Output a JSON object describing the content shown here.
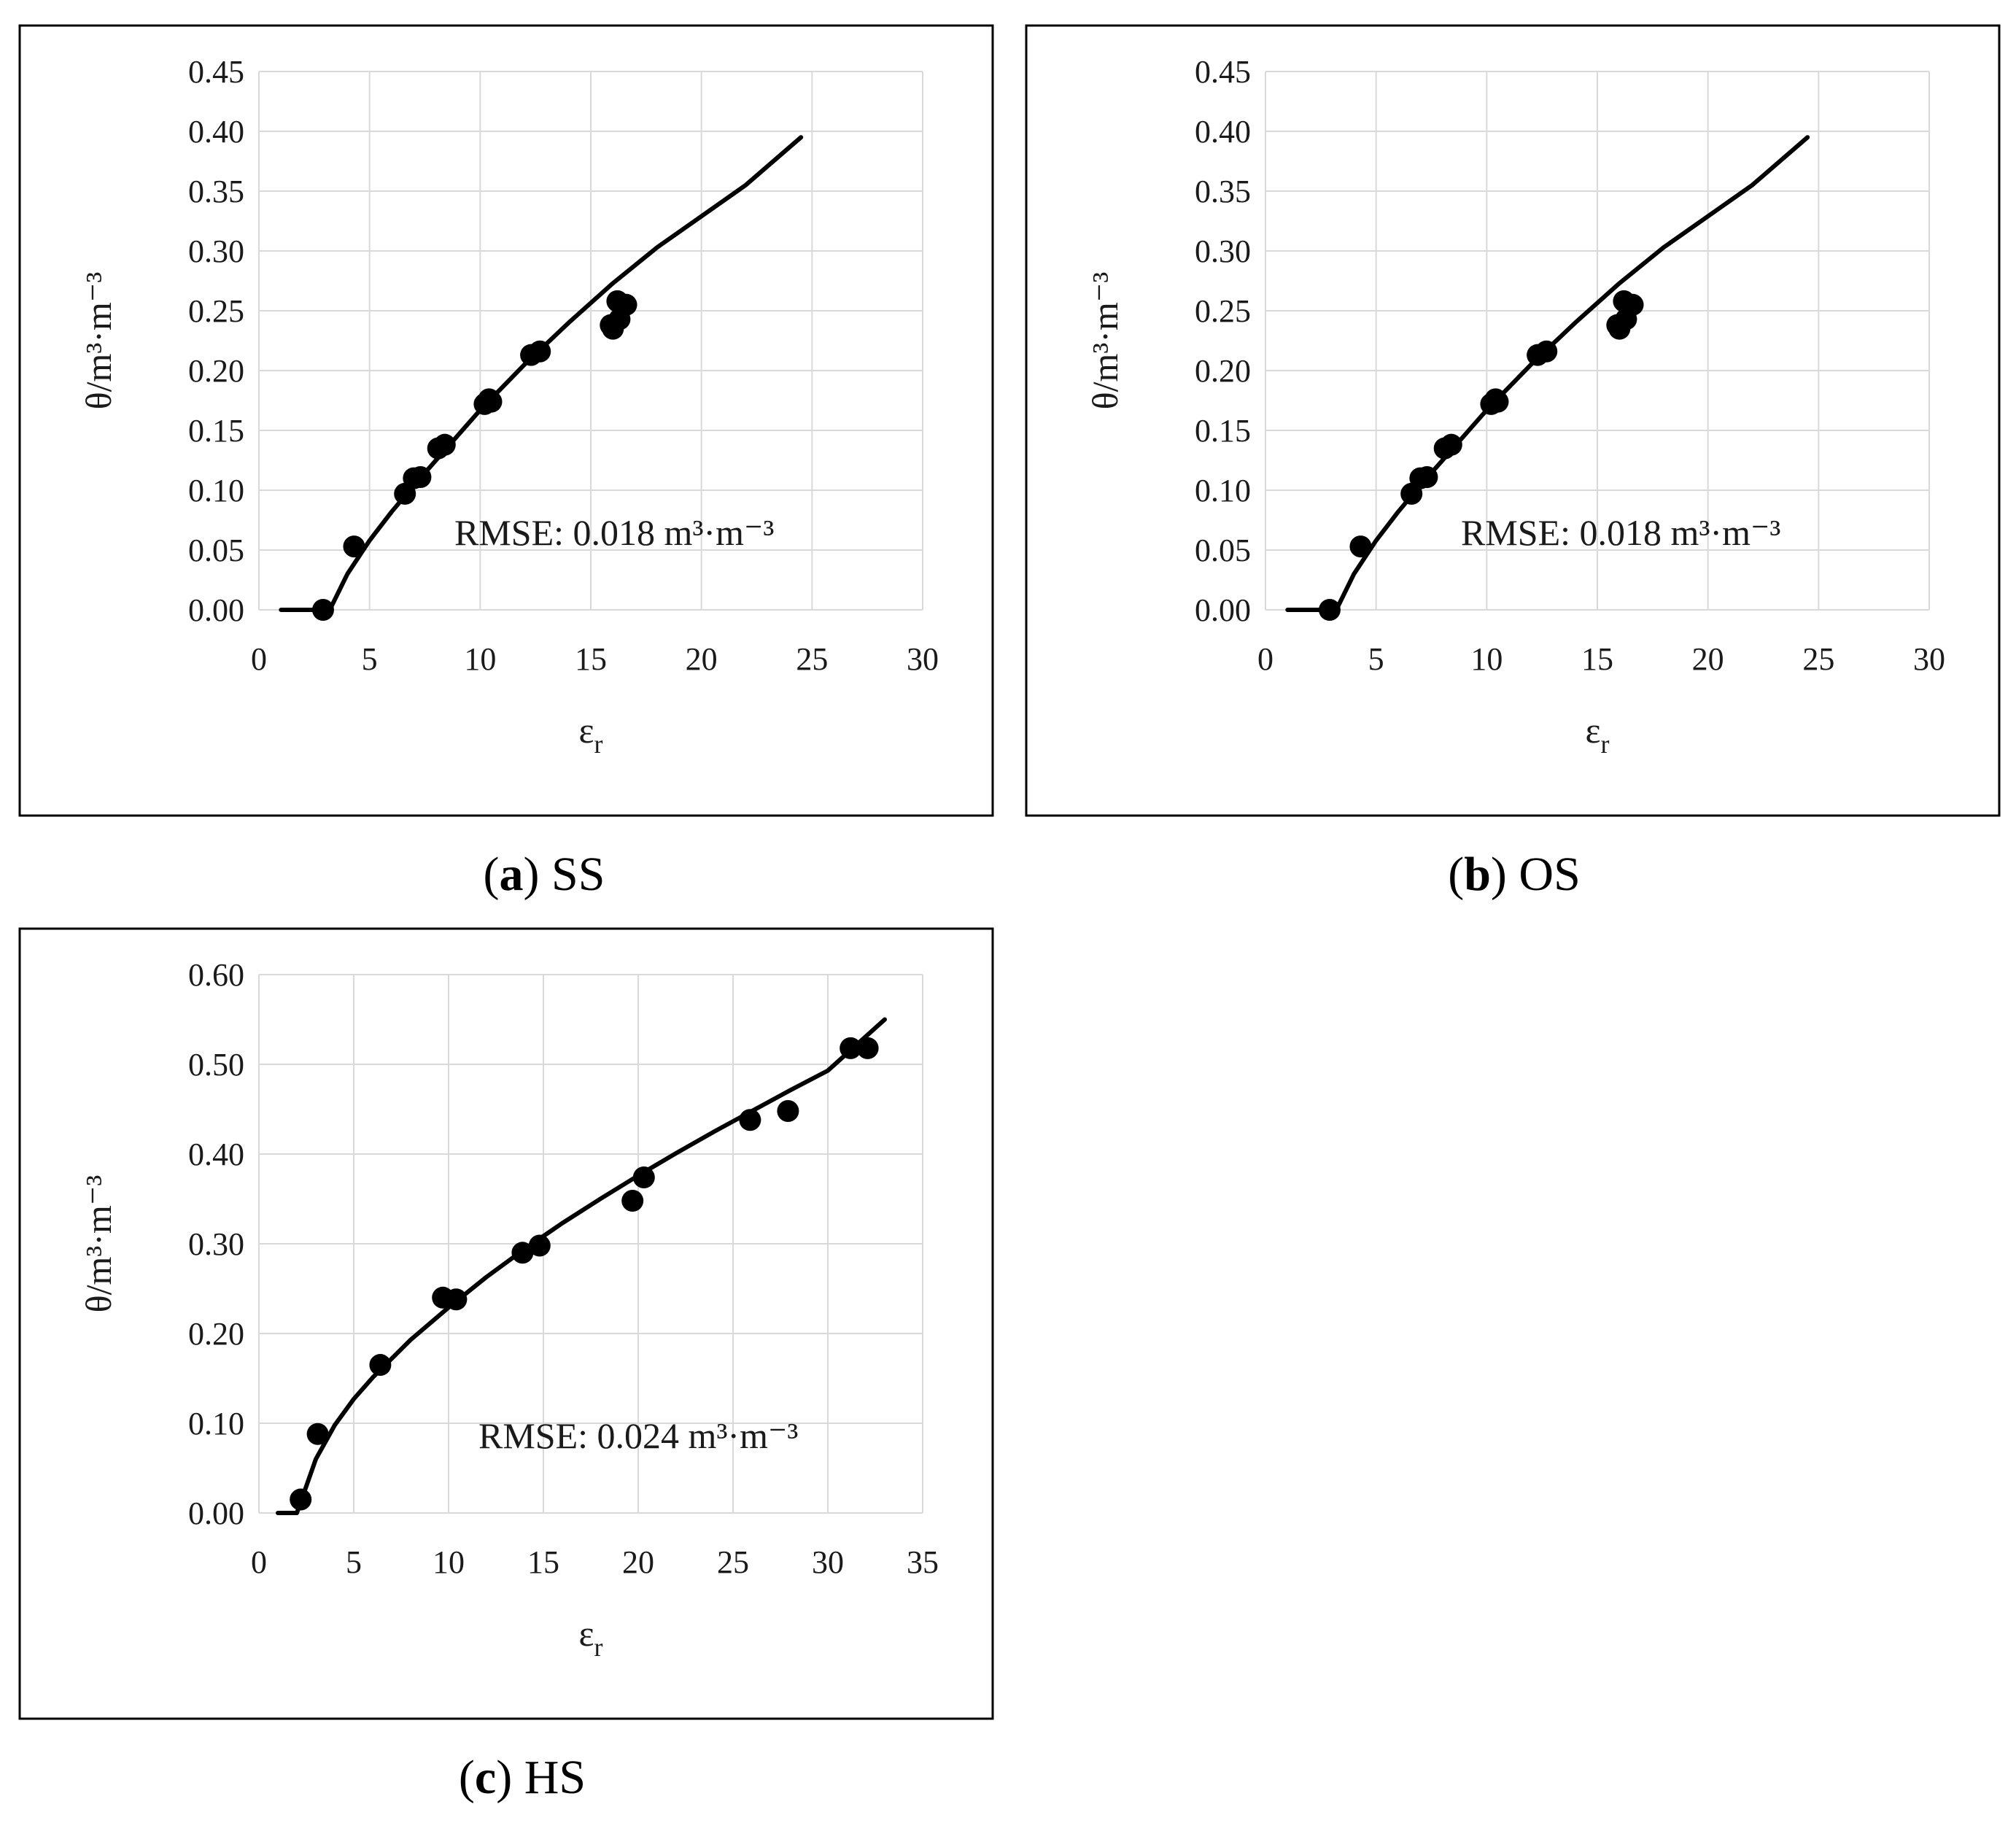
{
  "chart_data": [
    {
      "type": "scatter",
      "panel_letter": "a",
      "panel_name": "SS",
      "xlabel": "ε",
      "xlabel_sub": "r",
      "ylabel": "θ/m³·m⁻³",
      "xlim": [
        0,
        30
      ],
      "ylim": [
        0,
        0.45
      ],
      "xticks": [
        "0",
        "5",
        "10",
        "15",
        "20",
        "25",
        "30"
      ],
      "yticks": [
        "0.00",
        "0.05",
        "0.10",
        "0.15",
        "0.20",
        "0.25",
        "0.30",
        "0.35",
        "0.40",
        "0.45"
      ],
      "grid": true,
      "rmse_label": "RMSE:  0.018 m³·m⁻³",
      "series": [
        {
          "kind": "points",
          "x": [
            2.9,
            4.3,
            6.6,
            7.0,
            7.3,
            8.1,
            8.4,
            10.2,
            10.4,
            10.5,
            12.3,
            12.7,
            15.9,
            16.0,
            16.2,
            16.3,
            16.6
          ],
          "y": [
            0.0,
            0.053,
            0.097,
            0.11,
            0.111,
            0.135,
            0.138,
            0.172,
            0.176,
            0.174,
            0.213,
            0.216,
            0.238,
            0.235,
            0.258,
            0.243,
            0.255
          ]
        },
        {
          "kind": "line",
          "x": [
            1.0,
            3.2,
            4.0,
            5.0,
            6.0,
            7.0,
            8.0,
            10.0,
            12.0,
            14.0,
            16.0,
            18.0,
            20.0,
            22.0,
            24.5
          ],
          "y": [
            0.0,
            0.0,
            0.03,
            0.058,
            0.082,
            0.104,
            0.125,
            0.167,
            0.205,
            0.24,
            0.273,
            0.303,
            0.329,
            0.355,
            0.395
          ]
        }
      ]
    },
    {
      "type": "scatter",
      "panel_letter": "b",
      "panel_name": "OS",
      "xlabel": "ε",
      "xlabel_sub": "r",
      "ylabel": "θ/m³·m⁻³",
      "xlim": [
        0,
        30
      ],
      "ylim": [
        0,
        0.45
      ],
      "xticks": [
        "0",
        "5",
        "10",
        "15",
        "20",
        "25",
        "30"
      ],
      "yticks": [
        "0.00",
        "0.05",
        "0.10",
        "0.15",
        "0.20",
        "0.25",
        "0.30",
        "0.35",
        "0.40",
        "0.45"
      ],
      "grid": true,
      "rmse_label": "RMSE:  0.018 m³·m⁻³",
      "series": [
        {
          "kind": "points",
          "x": [
            2.9,
            4.3,
            6.6,
            7.0,
            7.3,
            8.1,
            8.4,
            10.2,
            10.4,
            10.5,
            12.3,
            12.7,
            15.9,
            16.0,
            16.2,
            16.3,
            16.6
          ],
          "y": [
            0.0,
            0.053,
            0.097,
            0.11,
            0.111,
            0.135,
            0.138,
            0.172,
            0.176,
            0.174,
            0.213,
            0.216,
            0.238,
            0.235,
            0.258,
            0.243,
            0.255
          ]
        },
        {
          "kind": "line",
          "x": [
            1.0,
            3.2,
            4.0,
            5.0,
            6.0,
            7.0,
            8.0,
            10.0,
            12.0,
            14.0,
            16.0,
            18.0,
            20.0,
            22.0,
            24.5
          ],
          "y": [
            0.0,
            0.0,
            0.03,
            0.058,
            0.082,
            0.104,
            0.125,
            0.167,
            0.205,
            0.24,
            0.273,
            0.303,
            0.329,
            0.355,
            0.395
          ]
        }
      ]
    },
    {
      "type": "scatter",
      "panel_letter": "c",
      "panel_name": "HS",
      "xlabel": "ε",
      "xlabel_sub": "r",
      "ylabel": "θ/m³·m⁻³",
      "xlim": [
        0,
        35
      ],
      "ylim": [
        0,
        0.6
      ],
      "xticks": [
        "0",
        "5",
        "10",
        "15",
        "20",
        "25",
        "30",
        "35"
      ],
      "yticks": [
        "0.00",
        "0.10",
        "0.20",
        "0.30",
        "0.40",
        "0.50",
        "0.60"
      ],
      "grid": true,
      "rmse_label": "RMSE:  0.024 m³·m⁻³",
      "series": [
        {
          "kind": "points",
          "x": [
            2.2,
            3.1,
            6.4,
            9.7,
            10.4,
            13.9,
            14.8,
            19.7,
            20.3,
            25.9,
            27.9,
            31.2,
            32.1
          ],
          "y": [
            0.015,
            0.088,
            0.165,
            0.24,
            0.238,
            0.29,
            0.298,
            0.348,
            0.374,
            0.438,
            0.448,
            0.518,
            0.518
          ]
        },
        {
          "kind": "line",
          "x": [
            1.0,
            2.0,
            3.0,
            4.0,
            5.0,
            6.0,
            8.0,
            10.0,
            12.0,
            14.0,
            16.0,
            18.0,
            20.0,
            22.0,
            24.0,
            26.0,
            28.0,
            30.0,
            33.0
          ],
          "y": [
            0.0,
            0.0,
            0.06,
            0.098,
            0.127,
            0.151,
            0.193,
            0.229,
            0.263,
            0.294,
            0.323,
            0.35,
            0.376,
            0.401,
            0.425,
            0.448,
            0.471,
            0.493,
            0.55
          ]
        }
      ]
    }
  ]
}
